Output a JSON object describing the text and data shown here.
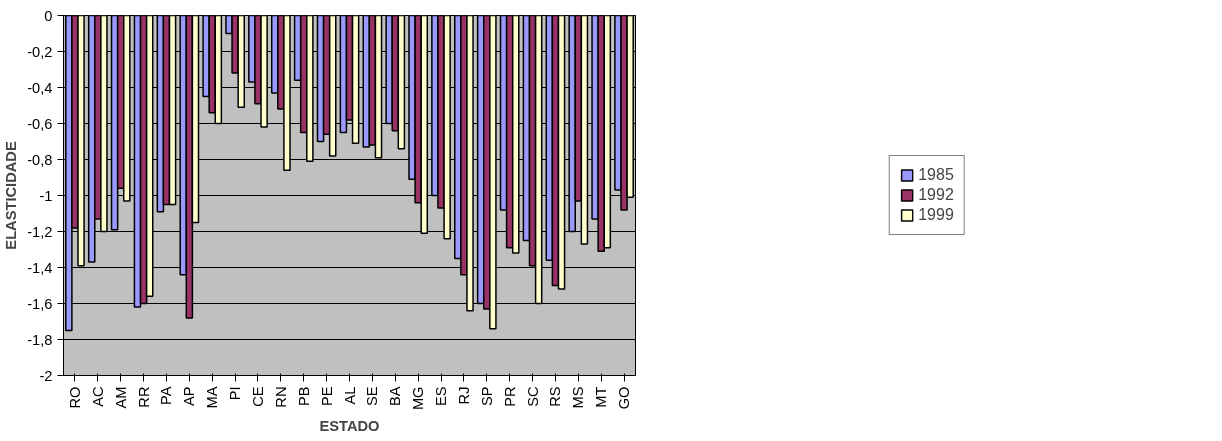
{
  "chart_data": {
    "type": "bar",
    "xlabel": "ESTADO",
    "ylabel": "ELASTICIDADE",
    "categories": [
      "RO",
      "AC",
      "AM",
      "RR",
      "PA",
      "AP",
      "MA",
      "PI",
      "CE",
      "RN",
      "PB",
      "PE",
      "AL",
      "SE",
      "BA",
      "MG",
      "ES",
      "RJ",
      "SP",
      "PR",
      "SC",
      "RS",
      "MS",
      "MT",
      "GO"
    ],
    "series": [
      {
        "name": "1985",
        "color": "#9999ff",
        "values": [
          -1.75,
          -1.37,
          -1.19,
          -1.62,
          -1.09,
          -1.44,
          -0.45,
          -0.1,
          -0.37,
          -0.43,
          -0.36,
          -0.7,
          -0.65,
          -0.73,
          -0.6,
          -0.91,
          -1.0,
          -1.35,
          -1.6,
          -1.08,
          -1.25,
          -1.36,
          -1.2,
          -1.13,
          -0.97
        ]
      },
      {
        "name": "1992",
        "color": "#993366",
        "values": [
          -1.18,
          -1.13,
          -0.96,
          -1.6,
          -1.05,
          -1.68,
          -0.54,
          -0.32,
          -0.49,
          -0.52,
          -0.65,
          -0.66,
          -0.58,
          -0.72,
          -0.64,
          -1.04,
          -1.07,
          -1.44,
          -1.63,
          -1.29,
          -1.39,
          -1.5,
          -1.03,
          -1.31,
          -1.08
        ]
      },
      {
        "name": "1999",
        "color": "#ffffcc",
        "values": [
          -1.39,
          -1.2,
          -1.03,
          -1.56,
          -1.05,
          -1.15,
          -0.6,
          -0.51,
          -0.62,
          -0.86,
          -0.81,
          -0.78,
          -0.71,
          -0.79,
          -0.74,
          -1.21,
          -1.24,
          -1.64,
          -1.74,
          -1.32,
          -1.6,
          -1.52,
          -1.27,
          -1.29,
          -1.01
        ]
      }
    ],
    "ylim": [
      -2,
      0
    ],
    "yticks": [
      {
        "value": -2,
        "label": "-2"
      },
      {
        "value": -1.8,
        "label": "-1,8"
      },
      {
        "value": -1.6,
        "label": "-1,6"
      },
      {
        "value": -1.4,
        "label": "-1,4"
      },
      {
        "value": -1.2,
        "label": "-1,2"
      },
      {
        "value": -1,
        "label": "-1"
      },
      {
        "value": -0.8,
        "label": "-0,8"
      },
      {
        "value": -0.6,
        "label": "-0,6"
      },
      {
        "value": -0.4,
        "label": "-0,4"
      },
      {
        "value": -0.2,
        "label": "-0,2"
      },
      {
        "value": 0,
        "label": "0"
      }
    ],
    "grid": "y",
    "legend": "right"
  }
}
